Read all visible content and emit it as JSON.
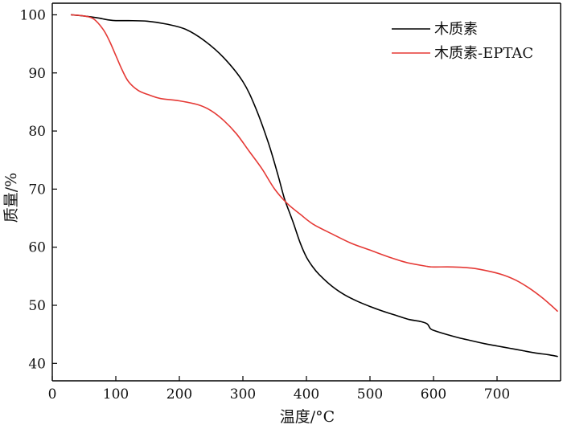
{
  "chart_data": {
    "type": "line",
    "xlabel": "温度/°C",
    "ylabel": "质量/%",
    "xlim": [
      0,
      800
    ],
    "ylim": [
      37,
      102
    ],
    "xticks": [
      0,
      100,
      200,
      300,
      400,
      500,
      600,
      700
    ],
    "yticks": [
      40,
      50,
      60,
      70,
      80,
      90,
      100
    ],
    "grid": false,
    "legend_position": "top-right",
    "series": [
      {
        "name": "木质素",
        "color": "#000000",
        "x": [
          30,
          50,
          70,
          90,
          100,
          120,
          150,
          180,
          210,
          240,
          270,
          300,
          320,
          340,
          355,
          365,
          375,
          380,
          390,
          400,
          410,
          420,
          440,
          460,
          480,
          500,
          520,
          540,
          560,
          580,
          590,
          595,
          600,
          620,
          640,
          660,
          680,
          700,
          720,
          740,
          760,
          780,
          795
        ],
        "y": [
          100,
          99.8,
          99.5,
          99.1,
          99.0,
          99.0,
          98.9,
          98.4,
          97.5,
          95.5,
          92.6,
          88.5,
          84.0,
          78.0,
          72.5,
          68.5,
          65.5,
          64.0,
          60.8,
          58.3,
          56.6,
          55.3,
          53.3,
          51.8,
          50.7,
          49.8,
          49.0,
          48.3,
          47.6,
          47.2,
          46.8,
          46.0,
          45.7,
          45.0,
          44.4,
          43.9,
          43.4,
          43.0,
          42.6,
          42.2,
          41.8,
          41.5,
          41.2
        ]
      },
      {
        "name": "木质素-EPTAC",
        "color": "#e53935",
        "x": [
          30,
          50,
          65,
          80,
          90,
          100,
          110,
          120,
          135,
          150,
          170,
          200,
          230,
          250,
          270,
          290,
          310,
          330,
          350,
          370,
          390,
          410,
          440,
          470,
          500,
          530,
          560,
          590,
          600,
          630,
          660,
          690,
          710,
          730,
          750,
          770,
          785,
          795
        ],
        "y": [
          100,
          99.8,
          99.3,
          97.5,
          95.5,
          93.0,
          90.5,
          88.5,
          87.0,
          86.3,
          85.6,
          85.2,
          84.5,
          83.5,
          81.8,
          79.5,
          76.5,
          73.5,
          70.0,
          67.5,
          65.7,
          64.0,
          62.3,
          60.7,
          59.5,
          58.3,
          57.3,
          56.7,
          56.6,
          56.6,
          56.4,
          55.8,
          55.2,
          54.3,
          53.0,
          51.4,
          50.0,
          49.0
        ]
      }
    ]
  }
}
